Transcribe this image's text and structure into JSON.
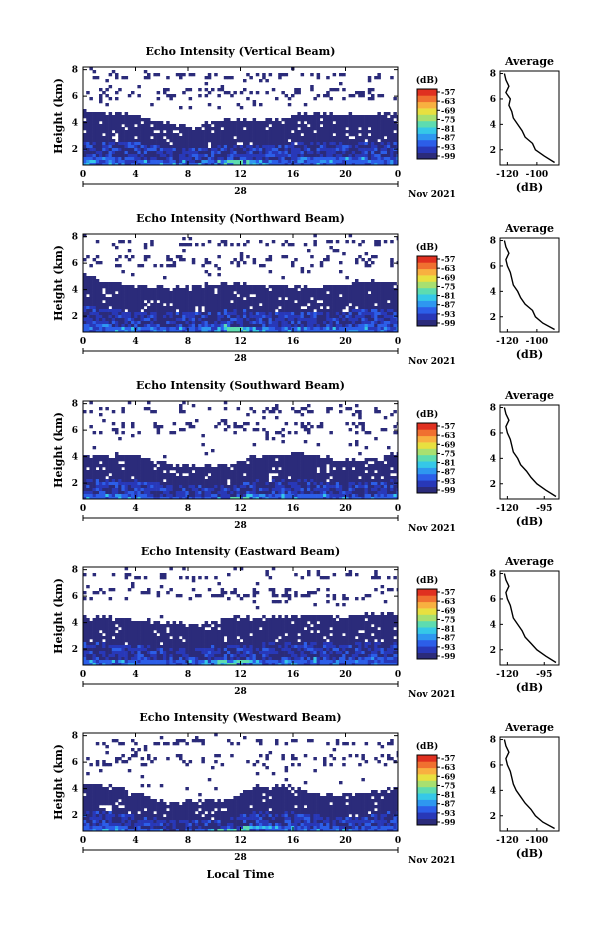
{
  "figure": {
    "x_label": "Local Time",
    "date_day": "28",
    "date_month_year": "Nov 2021",
    "y_label": "Height (km)",
    "avg_title": "Average",
    "avg_xlabel": "(dB)",
    "colorbar_unit": "(dB)",
    "colorbar_ticks": [
      "-57",
      "-63",
      "-69",
      "-75",
      "-81",
      "-87",
      "-93",
      "-99"
    ],
    "colorbar_colors": [
      "#2b2b7a",
      "#2838b8",
      "#2c5ee8",
      "#2e97f0",
      "#35c8e8",
      "#5ddcb0",
      "#a8e070",
      "#e8e040",
      "#f8b040",
      "#f07030",
      "#e03020"
    ],
    "x_ticks": [
      "0",
      "4",
      "8",
      "12",
      "16",
      "20",
      "0"
    ],
    "y_ticks": [
      "2",
      "4",
      "6",
      "8"
    ]
  },
  "chart_data": [
    {
      "type": "heatmap",
      "title": "Echo Intensity (Vertical Beam)",
      "x_range": [
        0,
        24
      ],
      "y_range": [
        0.8,
        8.2
      ],
      "cloud_top_km": [
        5.0,
        4.8,
        4.6,
        4.0,
        3.9,
        4.4,
        4.3,
        4.4,
        5.0,
        4.7,
        4.7,
        4.9
      ],
      "avg_profile": {
        "x_ticks": [
          "-120",
          "-100"
        ],
        "x_range": [
          -125,
          -85
        ],
        "height_km": [
          1.0,
          1.5,
          2.0,
          2.5,
          3.0,
          3.5,
          4.0,
          4.5,
          5.0,
          5.5,
          6.0,
          6.5,
          7.0,
          7.5,
          8.0
        ],
        "db": [
          -88,
          -95,
          -101,
          -103,
          -108,
          -110,
          -113,
          -116,
          -117,
          -119,
          -118,
          -121,
          -119,
          -121,
          -122
        ]
      }
    },
    {
      "type": "heatmap",
      "title": "Echo Intensity (Northward Beam)",
      "x_range": [
        0,
        24
      ],
      "y_range": [
        0.8,
        8.2
      ],
      "cloud_top_km": [
        5.2,
        4.6,
        4.4,
        4.4,
        4.4,
        4.7,
        4.5,
        4.4,
        4.3,
        4.6,
        4.8,
        4.6
      ],
      "avg_profile": {
        "x_ticks": [
          "-120",
          "-100"
        ],
        "x_range": [
          -125,
          -85
        ],
        "height_km": [
          1.0,
          1.5,
          2.0,
          2.5,
          3.0,
          3.5,
          4.0,
          4.5,
          5.0,
          5.5,
          6.0,
          6.5,
          7.0,
          7.5,
          8.0
        ],
        "db": [
          -88,
          -96,
          -101,
          -103,
          -108,
          -111,
          -113,
          -116,
          -117,
          -118,
          -120,
          -121,
          -119,
          -121,
          -122
        ]
      }
    },
    {
      "type": "heatmap",
      "title": "Echo Intensity (Southward Beam)",
      "x_range": [
        0,
        24
      ],
      "y_range": [
        0.8,
        8.2
      ],
      "cloud_top_km": [
        4.3,
        4.3,
        4.2,
        3.5,
        3.4,
        3.5,
        4.2,
        4.3,
        4.3,
        3.8,
        3.9,
        4.4
      ],
      "avg_profile": {
        "x_ticks": [
          "-120",
          "-95"
        ],
        "x_range": [
          -125,
          -85
        ],
        "height_km": [
          1.0,
          1.5,
          2.0,
          2.5,
          3.0,
          3.5,
          4.0,
          4.5,
          5.0,
          5.5,
          6.0,
          6.5,
          7.0,
          7.5,
          8.0
        ],
        "db": [
          -87,
          -94,
          -100,
          -104,
          -107,
          -111,
          -113,
          -116,
          -117,
          -118,
          -120,
          -121,
          -119,
          -121,
          -122
        ]
      }
    },
    {
      "type": "heatmap",
      "title": "Echo Intensity (Eastward Beam)",
      "x_range": [
        0,
        24
      ],
      "y_range": [
        0.8,
        8.2
      ],
      "cloud_top_km": [
        4.6,
        4.5,
        4.3,
        4.1,
        3.9,
        4.5,
        4.5,
        4.6,
        4.7,
        4.6,
        4.8,
        4.8
      ],
      "avg_profile": {
        "x_ticks": [
          "-120",
          "-95"
        ],
        "x_range": [
          -125,
          -85
        ],
        "height_km": [
          1.0,
          1.5,
          2.0,
          2.5,
          3.0,
          3.5,
          4.0,
          4.5,
          5.0,
          5.5,
          6.0,
          6.5,
          7.0,
          7.5,
          8.0
        ],
        "db": [
          -87,
          -94,
          -100,
          -104,
          -108,
          -110,
          -113,
          -116,
          -117,
          -118,
          -120,
          -121,
          -119,
          -121,
          -122
        ]
      }
    },
    {
      "type": "heatmap",
      "title": "Echo Intensity (Westward Beam)",
      "x_range": [
        0,
        24
      ],
      "y_range": [
        0.8,
        8.2
      ],
      "cloud_top_km": [
        4.4,
        4.4,
        3.6,
        3.1,
        3.2,
        3.3,
        4.3,
        4.4,
        3.8,
        3.6,
        3.8,
        4.3
      ],
      "avg_profile": {
        "x_ticks": [
          "-120",
          "-100"
        ],
        "x_range": [
          -125,
          -85
        ],
        "height_km": [
          1.0,
          1.5,
          2.0,
          2.5,
          3.0,
          3.5,
          4.0,
          4.5,
          5.0,
          5.5,
          6.0,
          6.5,
          7.0,
          7.5,
          8.0
        ],
        "db": [
          -88,
          -96,
          -101,
          -104,
          -108,
          -111,
          -114,
          -116,
          -117,
          -118,
          -120,
          -121,
          -119,
          -121,
          -122
        ]
      }
    }
  ]
}
